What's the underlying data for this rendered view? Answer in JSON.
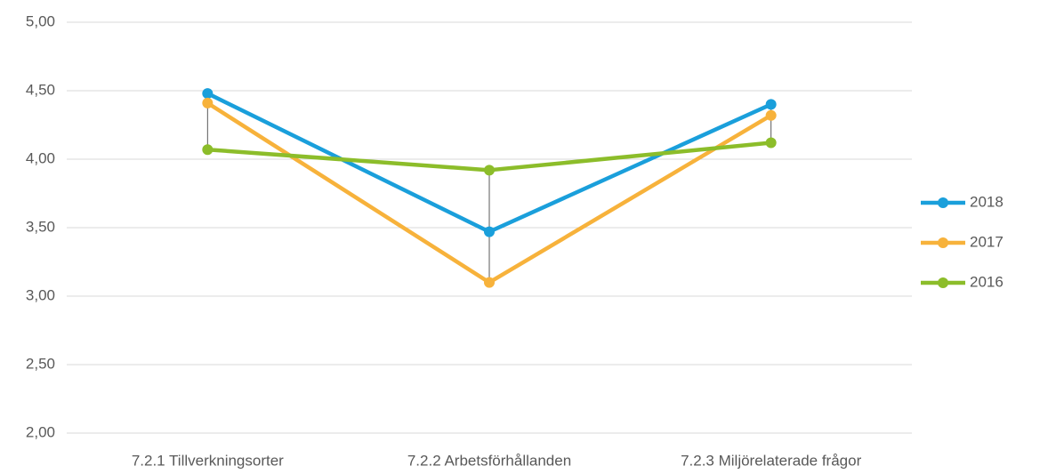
{
  "chart_data": {
    "type": "line",
    "categories": [
      "7.2.1 Tillverkningsorter",
      "7.2.2 Arbetsförhållanden",
      "7.2.3 Miljörelaterade frågor"
    ],
    "series": [
      {
        "name": "2018",
        "color": "#1a9fdb",
        "values": [
          4.48,
          3.47,
          4.4
        ]
      },
      {
        "name": "2017",
        "color": "#f7b23b",
        "values": [
          4.41,
          3.1,
          4.32
        ]
      },
      {
        "name": "2016",
        "color": "#8cbd2a",
        "values": [
          4.07,
          3.92,
          4.12
        ]
      }
    ],
    "ylim": [
      2,
      5
    ],
    "yticks": [
      {
        "value": 2,
        "label": "2,00"
      },
      {
        "value": 2.5,
        "label": "2,50"
      },
      {
        "value": 3,
        "label": "3,00"
      },
      {
        "value": 3.5,
        "label": "3,50"
      },
      {
        "value": 4,
        "label": "4,00"
      },
      {
        "value": 4.5,
        "label": "4,50"
      },
      {
        "value": 5,
        "label": "5,00"
      }
    ],
    "grid": true,
    "hi_lo_lines": true,
    "legend": "right"
  }
}
